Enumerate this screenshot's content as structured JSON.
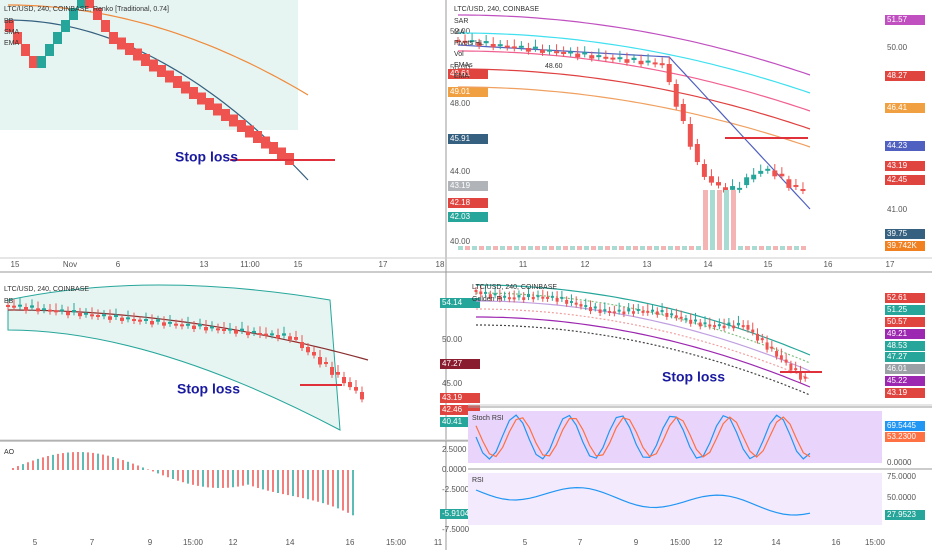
{
  "panels": [
    {
      "title": "LTC/USD, 240, COINBASE, Renko [Traditional, 0.74]",
      "legend": [
        "BB",
        "SMA",
        "EMA"
      ],
      "annotation": "Stop loss",
      "axis": [
        {
          "label": "52.00"
        },
        {
          "label": "50.00"
        },
        {
          "label": "48.00"
        },
        {
          "label": "44.00"
        },
        {
          "label": "40.00"
        },
        {
          "label": "49.61",
          "color": "#e0443f"
        },
        {
          "label": "49.01",
          "color": "#f0a040"
        },
        {
          "label": "45.91",
          "color": "#35607f"
        },
        {
          "label": "43.19",
          "color": "#b0b4b8"
        },
        {
          "label": "42.18",
          "color": "#e0443f"
        },
        {
          "label": "42.03",
          "color": "#26a69a"
        }
      ],
      "x_axis": [
        "15",
        "Nov",
        "6",
        "13",
        "11:00",
        "15",
        "17",
        "18"
      ]
    },
    {
      "title": "LTC/USD, 240, COINBASE",
      "legend": [
        "SAR",
        "MA",
        "Pivots HL",
        "Vol",
        "EMAs",
        "EMA"
      ],
      "annotation": "48.60",
      "axis": [
        {
          "label": "50.00"
        },
        {
          "label": "41.00"
        },
        {
          "label": "51.57",
          "color": "#c050c0"
        },
        {
          "label": "48.27",
          "color": "#e0443f"
        },
        {
          "label": "46.41",
          "color": "#f0a040"
        },
        {
          "label": "44.23",
          "color": "#5060c0"
        },
        {
          "label": "43.19",
          "color": "#e0443f"
        },
        {
          "label": "42.45",
          "color": "#e0443f"
        },
        {
          "label": "39.75",
          "color": "#35607f"
        },
        {
          "label": "39.742K",
          "color": "#f08020"
        }
      ],
      "x_axis": [
        "11",
        "12",
        "13",
        "14",
        "15",
        "16",
        "17"
      ]
    },
    {
      "title": "LTC/USD, 240, COINBASE",
      "legend": [
        "BB"
      ],
      "annotation": "Stop loss",
      "axis": [
        {
          "label": "50.00"
        },
        {
          "label": "45.00"
        },
        {
          "label": "54.14",
          "color": "#26a69a"
        },
        {
          "label": "47.27",
          "color": "#8a1c30"
        },
        {
          "label": "43.19",
          "color": "#e0443f"
        },
        {
          "label": "42.46",
          "color": "#e0443f"
        },
        {
          "label": "40.41",
          "color": "#26a69a"
        }
      ],
      "x_axis": [
        "5",
        "7",
        "9",
        "15:00",
        "12",
        "14",
        "16",
        "15:00",
        "11"
      ]
    },
    {
      "title": "LTC/USD, 240, COINBASE",
      "legend": [
        "Golden Fi"
      ],
      "annotation": "Stop loss",
      "axis": [
        {
          "label": "52.61",
          "color": "#e0443f"
        },
        {
          "label": "51.25",
          "color": "#26a69a"
        },
        {
          "label": "50.57",
          "color": "#e0443f"
        },
        {
          "label": "49.21",
          "color": "#9c27b0"
        },
        {
          "label": "48.53",
          "color": "#26a69a"
        },
        {
          "label": "47.27",
          "color": "#26a69a"
        },
        {
          "label": "46.01",
          "color": "#9aa0a6"
        },
        {
          "label": "45.22",
          "color": "#9c27b0"
        },
        {
          "label": "43.19",
          "color": "#e0443f"
        }
      ],
      "x_axis": [
        "5",
        "7",
        "9",
        "15:00",
        "12",
        "14",
        "16",
        "15:00"
      ]
    }
  ],
  "subpanels": [
    {
      "title": "AO",
      "axis": [
        {
          "label": "2.5000"
        },
        {
          "label": "0.0000"
        },
        {
          "label": "-2.5000"
        },
        {
          "label": "-5.9104",
          "color": "#26a69a"
        },
        {
          "label": "-7.5000"
        }
      ]
    },
    {
      "title": "Stoch RSI",
      "axis": [
        {
          "label": "69.5445",
          "color": "#2196f3"
        },
        {
          "label": "53.2300",
          "color": "#ff7043"
        },
        {
          "label": "0.0000"
        }
      ]
    },
    {
      "title": "RSI",
      "axis": [
        {
          "label": "75.0000"
        },
        {
          "label": "50.0000"
        },
        {
          "label": "27.9523",
          "color": "#26a69a"
        }
      ]
    }
  ]
}
